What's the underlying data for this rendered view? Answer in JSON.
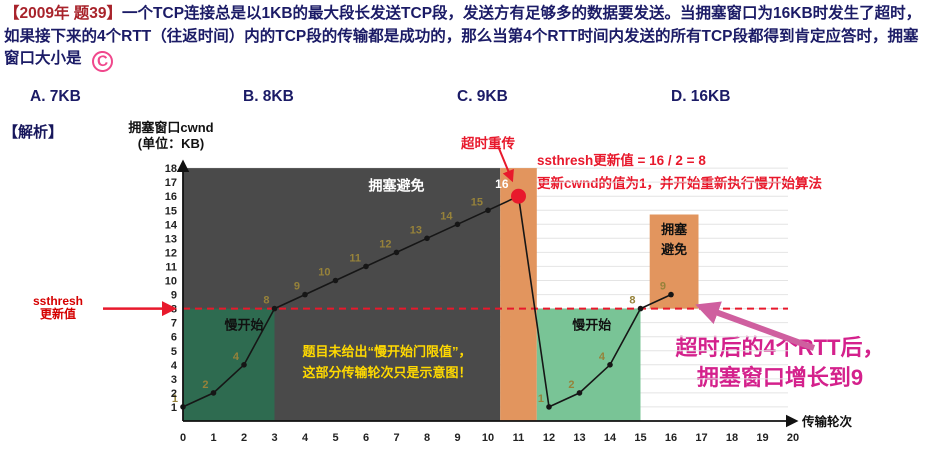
{
  "question": {
    "tag": "【2009年 题39】",
    "text": "一个TCP连接总是以1KB的最大段长发送TCP段，发送方有足够多的数据要发送。当拥塞窗口为16KB时发生了超时，如果接下来的4个RTT（往返时间）内的TCP段的传输都是成功的，那么当第4个RTT时间内发送的所有TCP段都得到肯定应答时，拥塞窗口大小是",
    "answer": "C"
  },
  "options": [
    "A. 7KB",
    "B. 8KB",
    "C. 9KB",
    "D. 16KB"
  ],
  "analysis_label": "【解析】",
  "annotations": {
    "timeout_label": "超时重传",
    "ssthresh_side": [
      "ssthresh",
      "更新值"
    ],
    "red_note_1": "ssthresh更新值 = 16 / 2 = 8",
    "red_note_2": "更新cwnd的值为1，并开始重新执行慢开始算法",
    "result_1": "超时后的4个RTT后，",
    "result_2": "拥塞窗口增长到9"
  },
  "colors": {
    "red": "#e8192c",
    "navy": "#1b1b66",
    "tag_red": "#a8232b",
    "magenta": "#d4218c",
    "pink_arrow": "#cf5f9f",
    "olive": "#96823a",
    "yellow": "#ffd900",
    "dark_overlay": "#4a4a4a",
    "green_dark": "#2e6b50",
    "green_light": "#79c496",
    "orange": "#e2955e"
  },
  "chart_data": {
    "type": "line",
    "xlabel": "传输轮次",
    "ylabel": [
      "拥塞窗口cwnd",
      "(单位：KB)"
    ],
    "xlim": [
      0,
      20
    ],
    "ylim": [
      0,
      18
    ],
    "ssthresh": 8,
    "timeout_point": {
      "x": 11,
      "y": 16
    },
    "series": [
      {
        "name": "before-timeout",
        "x": [
          0,
          1,
          2,
          3,
          4,
          5,
          6,
          7,
          8,
          9,
          10,
          11
        ],
        "y": [
          1,
          2,
          4,
          8,
          9,
          10,
          11,
          12,
          13,
          14,
          15,
          16
        ]
      },
      {
        "name": "after-timeout",
        "x": [
          12,
          13,
          14,
          15,
          16
        ],
        "y": [
          1,
          2,
          4,
          8,
          9
        ]
      }
    ],
    "regions": [
      {
        "name": "dark-overlay",
        "x0": 0,
        "x1": 10.4,
        "y0": 0,
        "y1": 18,
        "color": "#4a4a4a"
      },
      {
        "name": "slow-start-1",
        "x0": 0,
        "x1": 3,
        "y0": 0,
        "y1": 8,
        "color": "#2e6b50"
      },
      {
        "name": "timeout-band",
        "x0": 10.4,
        "x1": 11.6,
        "y0": 0,
        "y1": 18,
        "color": "#e2955e"
      },
      {
        "name": "slow-start-2",
        "x0": 11.6,
        "x1": 15,
        "y0": 0,
        "y1": 8,
        "color": "#79c496"
      },
      {
        "name": "cong-avoid-2",
        "x0": 15.3,
        "x1": 16.9,
        "y0": 8,
        "y1": 14.7,
        "color": "#e2955e"
      }
    ],
    "labels": [
      {
        "text": "拥塞避免",
        "x": 7,
        "y": 16.4,
        "color": "#ffffff",
        "size": 14
      },
      {
        "text": "慢开始",
        "x": 2,
        "y": 6.5,
        "color": "#111111",
        "size": 13
      },
      {
        "text": "慢开始",
        "x": 13.4,
        "y": 6.5,
        "color": "#111111",
        "size": 13
      },
      {
        "text": "拥塞",
        "x": 16.1,
        "y": 13.3,
        "color": "#111111",
        "size": 13
      },
      {
        "text": "避免",
        "x": 16.1,
        "y": 11.9,
        "color": "#111111",
        "size": 13
      }
    ],
    "note_yellow": [
      "题目未给出“慢开始门限值”，",
      "这部分传输轮次只是示意图！"
    ]
  }
}
